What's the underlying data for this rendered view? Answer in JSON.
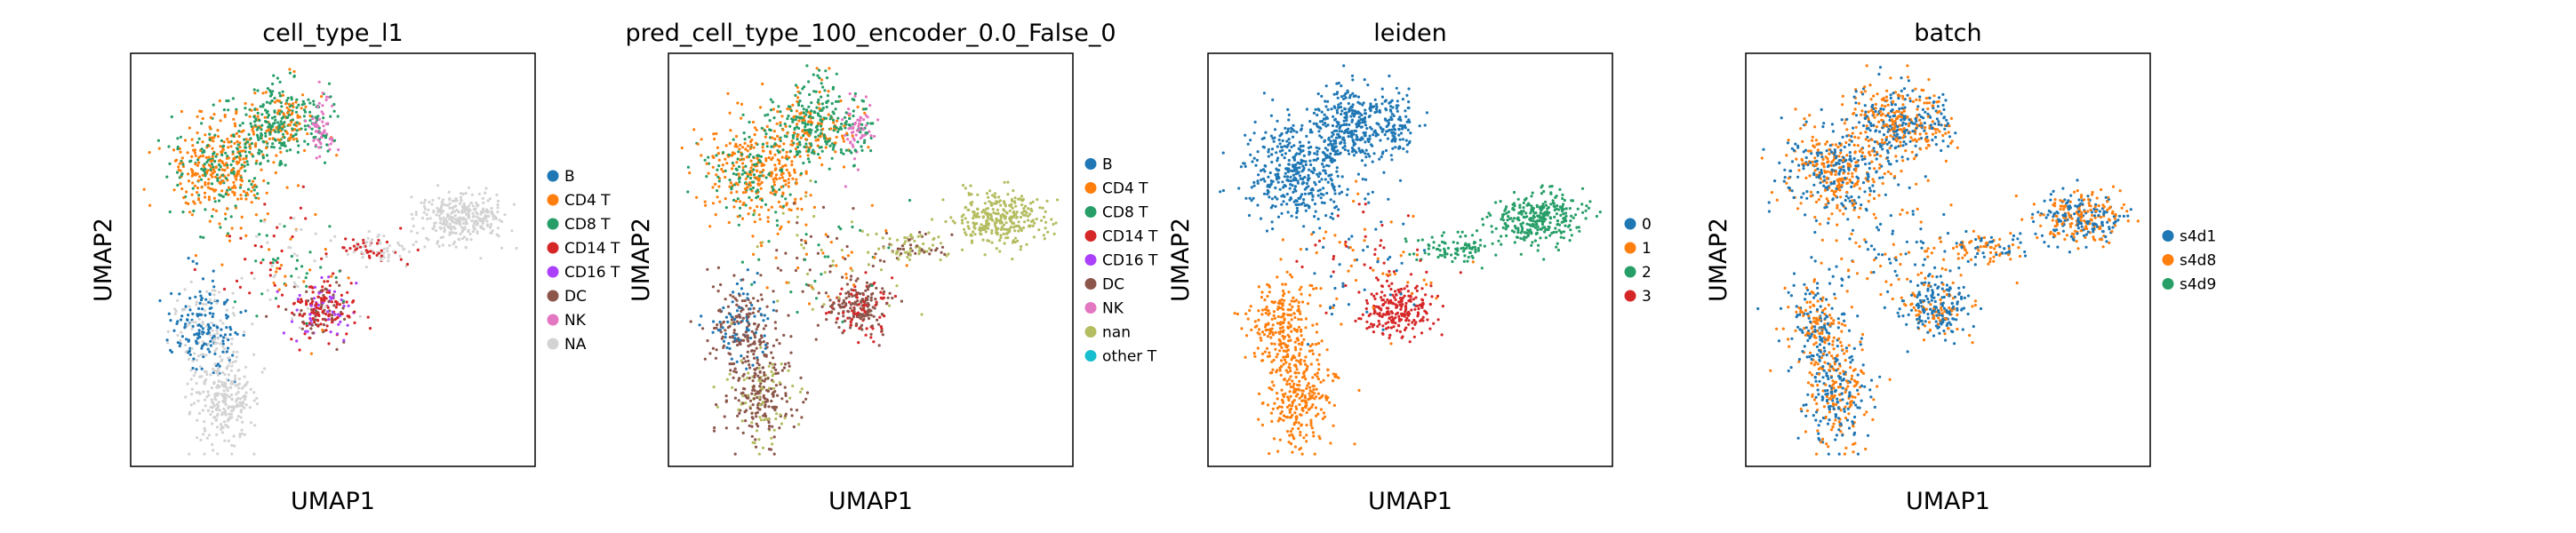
{
  "chart_data": [
    {
      "type": "scatter",
      "title": "cell_type_l1",
      "xlabel": "UMAP1",
      "ylabel": "UMAP2",
      "grid": false,
      "ticks": false,
      "legend_placement": "right",
      "legend": [
        {
          "name": "B",
          "color": "#1f77b4"
        },
        {
          "name": "CD4 T",
          "color": "#ff7f0e"
        },
        {
          "name": "CD8 T",
          "color": "#279e68"
        },
        {
          "name": "CD14 T",
          "color": "#d62728"
        },
        {
          "name": "CD16 T",
          "color": "#aa40fc"
        },
        {
          "name": "DC",
          "color": "#8c564b"
        },
        {
          "name": "NK",
          "color": "#e377c2"
        },
        {
          "name": "NA",
          "color": "#d3d3d3"
        }
      ]
    },
    {
      "type": "scatter",
      "title": "pred_cell_type_100_encoder_0.0_False_0",
      "xlabel": "UMAP1",
      "ylabel": "UMAP2",
      "grid": false,
      "ticks": false,
      "legend_placement": "right",
      "legend": [
        {
          "name": "B",
          "color": "#1f77b4"
        },
        {
          "name": "CD4 T",
          "color": "#ff7f0e"
        },
        {
          "name": "CD8 T",
          "color": "#279e68"
        },
        {
          "name": "CD14 T",
          "color": "#d62728"
        },
        {
          "name": "CD16 T",
          "color": "#aa40fc"
        },
        {
          "name": "DC",
          "color": "#8c564b"
        },
        {
          "name": "NK",
          "color": "#e377c2"
        },
        {
          "name": "nan",
          "color": "#b5bd61"
        },
        {
          "name": "other T",
          "color": "#17becf"
        }
      ]
    },
    {
      "type": "scatter",
      "title": "leiden",
      "xlabel": "UMAP1",
      "ylabel": "UMAP2",
      "grid": false,
      "ticks": false,
      "legend_placement": "right",
      "legend": [
        {
          "name": "0",
          "color": "#1f77b4"
        },
        {
          "name": "1",
          "color": "#ff7f0e"
        },
        {
          "name": "2",
          "color": "#279e68"
        },
        {
          "name": "3",
          "color": "#d62728"
        }
      ]
    },
    {
      "type": "scatter",
      "title": "batch",
      "xlabel": "UMAP1",
      "ylabel": "UMAP2",
      "grid": false,
      "ticks": false,
      "legend_placement": "right",
      "legend": [
        {
          "name": "s4d1",
          "color": "#1f77b4"
        },
        {
          "name": "s4d8",
          "color": "#ff7f0e"
        },
        {
          "name": "s4d9",
          "color": "#279e68"
        }
      ]
    }
  ]
}
